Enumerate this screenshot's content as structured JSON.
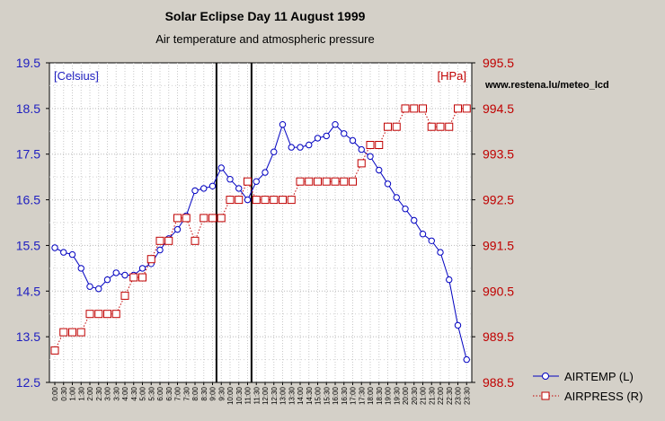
{
  "chart_data": {
    "type": "line",
    "title": "Solar Eclipse Day 11 August 1999",
    "subtitle": "Air temperature and atmospheric pressure",
    "left_unit": "[Celsius]",
    "right_unit": "[HPa]",
    "annotation": "www.restena.lu/meteo_lcd",
    "ylim_left": [
      12.5,
      19.5
    ],
    "ylim_right": [
      988.5,
      995.5
    ],
    "yticks_left": [
      "12.5",
      "13.5",
      "14.5",
      "15.5",
      "16.5",
      "17.5",
      "18.5",
      "19.5"
    ],
    "yticks_right": [
      "988.5",
      "989.5",
      "990.5",
      "991.5",
      "992.5",
      "993.5",
      "994.5",
      "995.5"
    ],
    "categories": [
      "0:00",
      "0:30",
      "1:00",
      "1:30",
      "2:00",
      "2:30",
      "3:00",
      "3:30",
      "4:00",
      "4:30",
      "5:00",
      "5:30",
      "6:00",
      "6:30",
      "7:00",
      "7:30",
      "8:00",
      "8:30",
      "9:00",
      "9:30",
      "10:00",
      "10:30",
      "11:00",
      "11:30",
      "12:00",
      "12:30",
      "13:00",
      "13:30",
      "14:00",
      "14:30",
      "15:00",
      "15:30",
      "16:00",
      "16:30",
      "17:00",
      "17:30",
      "18:00",
      "18:30",
      "19:00",
      "19:30",
      "20:00",
      "20:30",
      "21:00",
      "21:30",
      "22:00",
      "22:30",
      "23:00",
      "23:30"
    ],
    "grid": true,
    "legend_position": "bottom-right",
    "eclipse_markers": [
      "9:00",
      "11:00"
    ],
    "series": [
      {
        "name": "AIRTEMP (L)",
        "axis": "left",
        "color": "#0000c0",
        "marker": "circle",
        "style": "solid",
        "values": [
          15.45,
          15.35,
          15.3,
          15.0,
          14.6,
          14.55,
          14.75,
          14.9,
          14.85,
          14.85,
          15.0,
          15.1,
          15.4,
          15.65,
          15.85,
          16.15,
          16.7,
          16.75,
          16.8,
          17.2,
          16.95,
          16.75,
          16.5,
          16.9,
          17.1,
          17.55,
          18.15,
          17.65,
          17.65,
          17.7,
          17.85,
          17.9,
          18.15,
          17.95,
          17.8,
          17.6,
          17.45,
          17.15,
          16.85,
          16.55,
          16.3,
          16.05,
          15.75,
          15.6,
          15.35,
          14.75,
          13.75,
          13.0
        ]
      },
      {
        "name": "AIRPRESS (R)",
        "axis": "right",
        "color": "#c00000",
        "marker": "square",
        "style": "dotted",
        "values": [
          989.2,
          989.6,
          989.6,
          989.6,
          990.0,
          990.0,
          990.0,
          990.0,
          990.4,
          990.8,
          990.8,
          991.2,
          991.6,
          991.6,
          992.1,
          992.1,
          991.6,
          992.1,
          992.1,
          992.1,
          992.5,
          992.5,
          992.9,
          992.5,
          992.5,
          992.5,
          992.5,
          992.5,
          992.9,
          992.9,
          992.9,
          992.9,
          992.9,
          992.9,
          992.9,
          993.3,
          993.7,
          993.7,
          994.1,
          994.1,
          994.5,
          994.5,
          994.5,
          994.1,
          994.1,
          994.1,
          994.5,
          994.5
        ]
      }
    ]
  }
}
